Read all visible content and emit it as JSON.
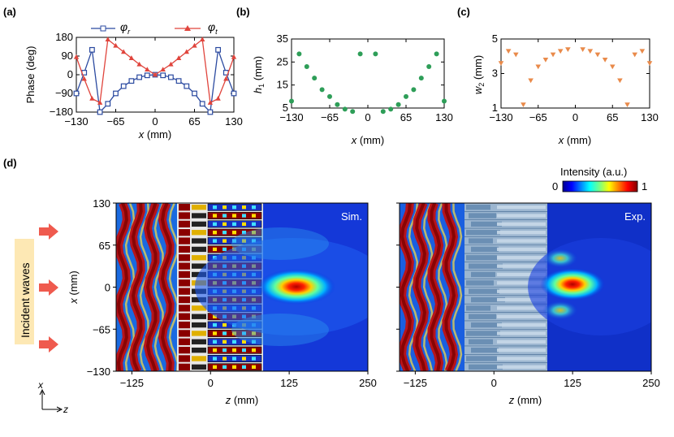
{
  "panel_labels": {
    "a": "(a)",
    "b": "(b)",
    "c": "(c)",
    "d": "(d)"
  },
  "colors": {
    "phi_r": "#2b4aa0",
    "phi_t": "#e0443c",
    "h1": "#2e9e58",
    "w2": "#e98a4a",
    "arrow": "#ef5a4e",
    "incident_bg": "#fde8b4"
  },
  "chart_data": [
    {
      "type": "line",
      "panel": "(a)",
      "ylabel": "Phase (deg)",
      "xlabel": "x (mm)",
      "xlim": [
        -130,
        130
      ],
      "ylim": [
        -180,
        180
      ],
      "xticks": [
        "−130",
        "−65",
        "0",
        "65",
        "130"
      ],
      "yticks": [
        "−180",
        "−90",
        "0",
        "90",
        "180"
      ],
      "xtick_values": [
        -130,
        -65,
        0,
        65,
        130
      ],
      "ytick_values": [
        -180,
        -90,
        0,
        90,
        180
      ],
      "legend": {
        "position": "top",
        "entries": [
          "φr",
          "φt"
        ]
      },
      "series": [
        {
          "name": "φr",
          "marker": "square",
          "color": "#2b4aa0",
          "x": [
            -130,
            -117,
            -104,
            -91,
            -78,
            -65,
            -52,
            -39,
            -26,
            -13,
            0,
            13,
            26,
            39,
            52,
            65,
            78,
            91,
            104,
            117,
            130
          ],
          "y": [
            -90,
            10,
            120,
            -180,
            -140,
            -90,
            -55,
            -30,
            -12,
            -3,
            0,
            -3,
            -12,
            -30,
            -55,
            -90,
            -140,
            -180,
            120,
            10,
            -90
          ]
        },
        {
          "name": "φt",
          "marker": "triangle",
          "color": "#e0443c",
          "x": [
            -130,
            -117,
            -104,
            -91,
            -78,
            -65,
            -52,
            -39,
            -26,
            -13,
            0,
            13,
            26,
            39,
            52,
            65,
            78,
            91,
            104,
            117,
            130
          ],
          "y": [
            85,
            -20,
            -115,
            -135,
            170,
            140,
            110,
            80,
            50,
            25,
            0,
            25,
            50,
            80,
            110,
            140,
            170,
            -135,
            -115,
            -20,
            85
          ]
        }
      ]
    },
    {
      "type": "scatter",
      "panel": "(b)",
      "ylabel": "h1 (mm)",
      "xlabel": "x (mm)",
      "xlim": [
        -130,
        130
      ],
      "ylim": [
        5,
        35
      ],
      "xticks": [
        "−130",
        "−65",
        "0",
        "65",
        "130"
      ],
      "yticks": [
        "5",
        "15",
        "25",
        "35"
      ],
      "xtick_values": [
        -130,
        -65,
        0,
        65,
        130
      ],
      "ytick_values": [
        5,
        15,
        25,
        35
      ],
      "series": [
        {
          "x": [
            -130,
            -117,
            -104,
            -91,
            -78,
            -65,
            -52,
            -39,
            -26,
            -13,
            13,
            26,
            39,
            52,
            65,
            78,
            91,
            104,
            117,
            130
          ],
          "y": [
            8,
            28.5,
            23,
            18,
            13,
            10,
            6.5,
            4.5,
            3.5,
            28.5,
            28.5,
            3.5,
            4.5,
            6.5,
            10,
            13,
            18,
            23,
            28.5,
            8
          ]
        }
      ]
    },
    {
      "type": "scatter",
      "panel": "(c)",
      "ylabel": "w2 (mm)",
      "xlabel": "x (mm)",
      "xlim": [
        -130,
        130
      ],
      "ylim": [
        1,
        5
      ],
      "xticks": [
        "−130",
        "−65",
        "0",
        "65",
        "130"
      ],
      "yticks": [
        "1",
        "3",
        "5"
      ],
      "xtick_values": [
        -130,
        -65,
        0,
        65,
        130
      ],
      "ytick_values": [
        1,
        3,
        5
      ],
      "series": [
        {
          "marker": "triangle-down",
          "x": [
            -130,
            -117,
            -104,
            -91,
            -78,
            -65,
            -52,
            -39,
            -26,
            -13,
            13,
            26,
            39,
            52,
            65,
            78,
            91,
            104,
            117,
            130
          ],
          "y": [
            3.6,
            4.3,
            4.1,
            1.2,
            2.6,
            3.4,
            3.8,
            4.1,
            4.3,
            4.4,
            4.4,
            4.3,
            4.1,
            3.8,
            3.4,
            2.6,
            1.2,
            4.1,
            4.3,
            3.6
          ]
        }
      ]
    },
    {
      "type": "heatmap",
      "panel": "(d) left",
      "annotation": "Sim.",
      "xlabel": "z (mm)",
      "ylabel": "x (mm)",
      "xlim": [
        -150,
        250
      ],
      "ylim": [
        -130,
        130
      ],
      "xticks": [
        "−125",
        "0",
        "125",
        "250"
      ],
      "yticks": [
        "130",
        "65",
        "0",
        "−65",
        "−130"
      ],
      "xtick_values": [
        -125,
        0,
        125,
        250
      ],
      "ytick_values": [
        130,
        65,
        0,
        -65,
        -130
      ],
      "focus": {
        "z": 135,
        "x": 0
      }
    },
    {
      "type": "heatmap",
      "panel": "(d) right",
      "annotation": "Exp.",
      "xlabel": "z (mm)",
      "xlim": [
        -150,
        250
      ],
      "ylim": [
        -130,
        130
      ],
      "xticks": [
        "−125",
        "0",
        "125",
        "250"
      ],
      "xtick_values": [
        -125,
        0,
        125,
        250
      ],
      "focus": {
        "z": 125,
        "x": 0
      }
    }
  ],
  "colorbar": {
    "title": "Intensity (a.u.)",
    "min_label": "0",
    "max_label": "1"
  },
  "incident_label": "Incident waves",
  "axes_indicator": {
    "x": "x",
    "z": "z"
  }
}
